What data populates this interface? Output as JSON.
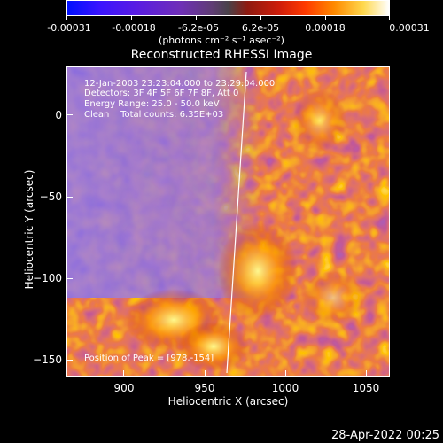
{
  "colorbar": {
    "tick_labels": [
      "-0.00031",
      "-0.00018",
      "-6.2e-05",
      "6.2e-05",
      "0.00018",
      "0.00031"
    ],
    "units": "(photons cm⁻² s⁻¹ asec⁻²)"
  },
  "plot": {
    "title": "Reconstructed RHESSI Image",
    "xlabel": "Heliocentric X (arcsec)",
    "ylabel": "Heliocentric Y (arcsec)",
    "x_ticks": [
      "900",
      "950",
      "1000",
      "1050"
    ],
    "y_ticks": [
      "0",
      "−50",
      "−100",
      "−150"
    ],
    "annotations": {
      "time_range": "12-Jan-2003 23:23:04.000 to 23:29:04.000",
      "detectors": "Detectors: 3F 4F 5F 6F 7F 8F, Att 0",
      "energy_range": "Energy Range: 25.0 - 50.0 keV",
      "clean_counts": "Clean    Total counts: 6.35E+03",
      "peak_position": "Position of Peak = [978,-154]"
    }
  },
  "footer": {
    "timestamp": "28-Apr-2022 00:25"
  },
  "colors": {
    "background": "#000000",
    "foreground": "#ffffff"
  }
}
